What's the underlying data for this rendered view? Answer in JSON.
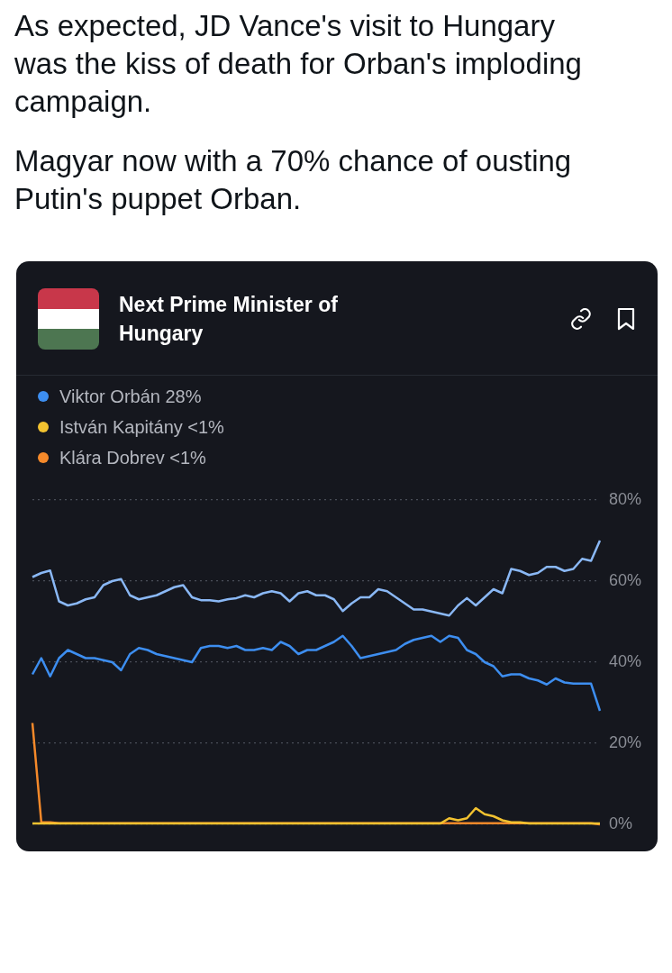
{
  "chart_data": {
    "type": "line",
    "title": "Next Prime Minister of Hungary",
    "annotations": [
      "As expected, JD Vance's visit to Hungary was the kiss of death for Orban's imploding campaign.",
      "Magyar now with a 70% chance of ousting Putin's puppet Orban."
    ],
    "categories": [
      null,
      null,
      null,
      null,
      null,
      null,
      null,
      null,
      null,
      null,
      null,
      null,
      null,
      null,
      null,
      null,
      null,
      null,
      null,
      null,
      null,
      null,
      null,
      null,
      null,
      null,
      null,
      null,
      null,
      null,
      null,
      null,
      null,
      null,
      null,
      null,
      null,
      null,
      null,
      null,
      null,
      null,
      null,
      null,
      null,
      null,
      null,
      null,
      null,
      null,
      null,
      null,
      null,
      null,
      null,
      null,
      null,
      null,
      null,
      null,
      null,
      null,
      null,
      null,
      null
    ],
    "series": [
      {
        "color": "#8ab8f5",
        "values": [
          61,
          62,
          62.6,
          55,
          54,
          54.5,
          55.5,
          56,
          59,
          60,
          60.5,
          56.5,
          55.5,
          56,
          56.5,
          57.5,
          58.5,
          59,
          56,
          55.3,
          55.3,
          55,
          55.5,
          55.8,
          56.5,
          56,
          57,
          57.5,
          57,
          55,
          57,
          57.5,
          56.5,
          56.5,
          55.5,
          52.6,
          54.5,
          56,
          56,
          58,
          57.5,
          56,
          54.5,
          53,
          53,
          52.5,
          52,
          51.5,
          54,
          55.8,
          54,
          56,
          58,
          57,
          63,
          62.5,
          61.5,
          62,
          63.5,
          63.5,
          62.5,
          63,
          65.5,
          65,
          70
        ]
      },
      {
        "name": "Viktor Orbán 28%",
        "color": "#3d8ef0",
        "values": [
          37,
          41,
          36.5,
          41,
          43,
          42,
          41,
          41,
          40.5,
          40,
          38,
          42,
          43.5,
          43,
          42,
          41.5,
          41,
          40.5,
          40,
          43.5,
          44,
          44,
          43.5,
          44,
          43,
          43,
          43.5,
          43,
          45,
          44,
          42,
          43,
          43,
          44,
          45,
          46.5,
          44,
          41,
          41.5,
          42,
          42.5,
          43,
          44.5,
          45.5,
          46,
          46.5,
          45,
          46.5,
          46,
          43,
          42,
          40,
          39,
          36.5,
          37,
          37,
          36,
          35.5,
          34.5,
          36,
          35,
          34.7,
          34.7,
          34.7,
          28
        ]
      },
      {
        "name": "István Kapitány <1%",
        "color": "#f2c230",
        "values": [
          0.2,
          0.2,
          0.2,
          0.2,
          0.2,
          0.2,
          0.2,
          0.2,
          0.2,
          0.2,
          0.2,
          0.2,
          0.2,
          0.2,
          0.2,
          0.2,
          0.2,
          0.2,
          0.2,
          0.2,
          0.2,
          0.2,
          0.2,
          0.2,
          0.2,
          0.2,
          0.2,
          0.2,
          0.2,
          0.2,
          0.2,
          0.2,
          0.2,
          0.2,
          0.2,
          0.2,
          0.2,
          0.2,
          0.2,
          0.2,
          0.2,
          0.2,
          0.2,
          0.2,
          0.2,
          0.2,
          0.2,
          1.5,
          1,
          1.5,
          4,
          2.5,
          2,
          1,
          0.5,
          0.5,
          0.2,
          0.2,
          0.2,
          0.2,
          0.2,
          0.2,
          0.2,
          0.2,
          0.2
        ]
      },
      {
        "name": "Klára Dobrev <1%",
        "color": "#f5892a",
        "values": [
          25,
          0.5,
          0.5,
          0.3,
          0.3,
          0.3,
          0.3,
          0.3,
          0.3,
          0.3,
          0.3,
          0.3,
          0.3,
          0.3,
          0.3,
          0.3,
          0.3,
          0.3,
          0.3,
          0.3,
          0.3,
          0.3,
          0.3,
          0.3,
          0.3,
          0.3,
          0.3,
          0.3,
          0.3,
          0.3,
          0.3,
          0.3,
          0.3,
          0.3,
          0.3,
          0.3,
          0.3,
          0.3,
          0.3,
          0.3,
          0.3,
          0.3,
          0.3,
          0.3,
          0.3,
          0.3,
          0.3,
          0.3,
          0.3,
          0.3,
          0.3,
          0.3,
          0.3,
          0.3,
          0.3,
          0.3,
          0.3,
          0.3,
          0.3,
          0.3,
          0.3,
          0.3,
          0.3,
          0.3,
          0
        ]
      }
    ],
    "ylim": [
      0,
      80
    ],
    "yticks": [
      {
        "value": 0,
        "label": "0%"
      },
      {
        "value": 20,
        "label": "20%"
      },
      {
        "value": 40,
        "label": "40%"
      },
      {
        "value": 60,
        "label": "60%"
      },
      {
        "value": 80,
        "label": "80%"
      }
    ],
    "grid": "y",
    "legend": "top left",
    "tick_labels": "y"
  }
}
